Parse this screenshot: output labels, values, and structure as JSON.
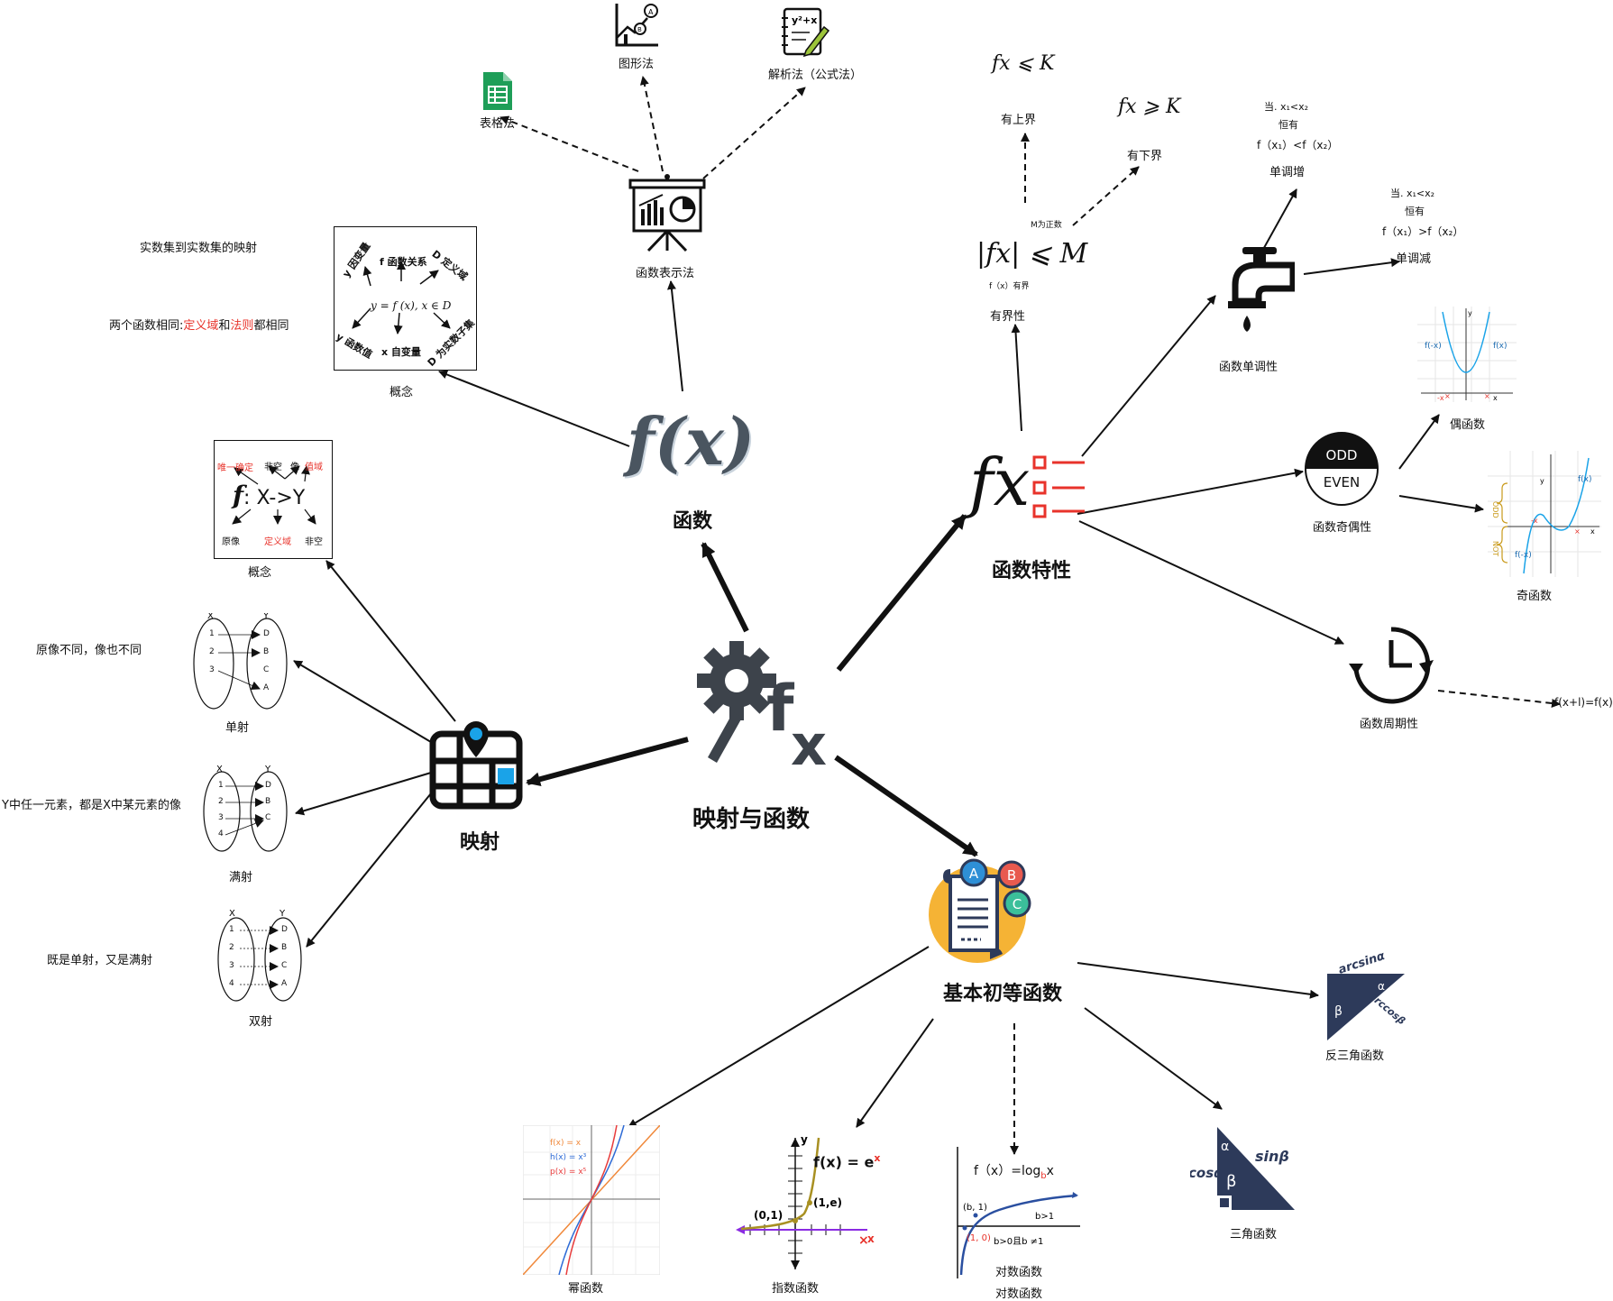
{
  "center": {
    "title": "映射与函数"
  },
  "function_node": {
    "title": "函数",
    "icon_text": "f(x)"
  },
  "mapping_node": {
    "title": "映射"
  },
  "properties_node": {
    "title": "函数特性",
    "icon_text": "fx"
  },
  "elementary_node": {
    "title": "基本初等函数",
    "badges": [
      "A",
      "B",
      "C"
    ]
  },
  "representation": {
    "title": "函数表示法",
    "graph": "图形法",
    "analytic": "解析法（公式法）",
    "table": "表格法"
  },
  "function_concept": {
    "caption": "概念",
    "note1": "实数集到实数集的映射",
    "note2_prefix": "两个函数相同:",
    "note2_domain": "定义域",
    "note2_and": "和",
    "note2_rule": "法则",
    "note2_suffix": "都相同",
    "box_items": {
      "y_dep": "y 因变量",
      "f_rel": "f 函数关系",
      "d_domain": "D 定义域",
      "formula": "y = f (x), x ∈ D",
      "y_val": "y 函数值",
      "x_ind": "x 自变量",
      "d_sub": "D 为实数子集"
    }
  },
  "mapping_concept": {
    "caption": "概念",
    "unique": "唯一确定",
    "nonempty1": "非空",
    "image": "像",
    "range": "值域",
    "formula": "X->Y",
    "preimage": "原像",
    "domain": "定义域",
    "nonempty2": "非空"
  },
  "injection": {
    "caption": "单射",
    "note": "原像不同，像也不同",
    "x": [
      "1",
      "2",
      "3"
    ],
    "y": [
      "D",
      "B",
      "C",
      "A"
    ]
  },
  "surjection": {
    "caption": "满射",
    "note": "Y中任一元素，都是X中某元素的像",
    "x": [
      "1",
      "2",
      "3",
      "4"
    ],
    "y": [
      "D",
      "B",
      "C"
    ]
  },
  "bijection": {
    "caption": "双射",
    "note": "既是单射，又是满射",
    "x": [
      "1",
      "2",
      "3",
      "4"
    ],
    "y": [
      "D",
      "B",
      "C",
      "A"
    ]
  },
  "set_labels": {
    "x": "X",
    "y": "Y"
  },
  "boundedness": {
    "title": "有界性",
    "upper_formula": "fx ⩽ K",
    "upper": "有上界",
    "lower_formula": "fx ⩾ K",
    "lower": "有下界",
    "abs_formula": "|fx| ⩽ M",
    "m_positive": "M为正数",
    "bounded_note": "f（x）有界"
  },
  "monotonicity": {
    "title": "函数单调性",
    "inc_cond1": "当. x₁<x₂",
    "inc_cond2": "恒有",
    "inc_cond3": "f（x₁）<f（x₂）",
    "inc": "单调增",
    "dec_cond1": "当. x₁<x₂",
    "dec_cond2": "恒有",
    "dec_cond3": "f（x₁）>f（x₂）",
    "dec": "单调减"
  },
  "parity": {
    "title": "函数奇偶性",
    "odd_label": "ODD",
    "even_label": "EVEN",
    "even": "偶函数",
    "odd": "奇函数",
    "even_graph": {
      "left": "f(-x)",
      "right": "f(x)",
      "xn": "-x",
      "xp": "x",
      "axis_x": "x",
      "axis_y": "y"
    },
    "odd_graph": {
      "top": "f(x)",
      "bottom": "f(-x)",
      "xn": "-x",
      "xp": "x",
      "axis_x": "x",
      "axis_y": "y",
      "side1": "ODD",
      "side2": "NOT"
    }
  },
  "periodicity": {
    "title": "函数周期性",
    "formula": "f(x+l)=f(x)"
  },
  "elementary": {
    "power": "幂函数",
    "power_legend": [
      "f(x) = x",
      "h(x) = x³",
      "p(x) = x⁵"
    ],
    "exponential": "指数函数",
    "exp_formula": "f(x) = e",
    "exp_sup": "x",
    "exp_p1": "(0,1)",
    "exp_p2": "(1,e)",
    "exp_x": "x",
    "exp_y": "y",
    "log1": "对数函数",
    "log2": "对数函数",
    "log_formula": "f（x）=log",
    "log_base": "b",
    "log_var": "x",
    "log_p1": "(b, 1)",
    "log_p2": "(1, 0)",
    "log_b1": "b>1",
    "log_cond": "b>0且b ≠1",
    "trig": "三角函数",
    "trig_sin": "sinβ",
    "trig_cos": "cosα",
    "trig_alpha": "α",
    "trig_beta": "β",
    "inv_trig": "反三角函数",
    "inv_asin": "arcsinα",
    "inv_acos": "arccosβ",
    "inv_alpha": "α",
    "inv_beta": "β"
  },
  "colors": {
    "red": "#e8332b",
    "blue": "#1aa3e8",
    "navy": "#2d3a5a",
    "green": "#1e9e58",
    "orange": "#f5b335"
  }
}
